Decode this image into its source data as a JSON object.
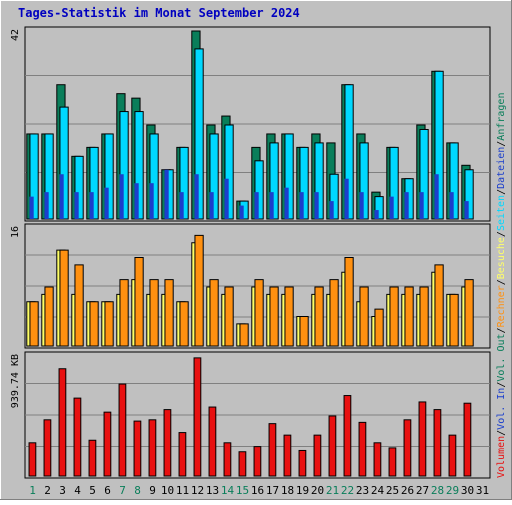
{
  "chart_data": {
    "type": "bar",
    "title": "Tages-Statistik im Monat September 2024",
    "categories": [
      "1",
      "2",
      "3",
      "4",
      "5",
      "6",
      "7",
      "8",
      "9",
      "10",
      "11",
      "12",
      "13",
      "14",
      "15",
      "16",
      "17",
      "18",
      "19",
      "20",
      "21",
      "22",
      "23",
      "24",
      "25",
      "26",
      "27",
      "28",
      "29",
      "30",
      "31"
    ],
    "weekend_days": [
      "1",
      "7",
      "8",
      "14",
      "15",
      "21",
      "22",
      "28",
      "29"
    ],
    "colors": {
      "background": "#c0c0c0",
      "title": "#0000c0",
      "anfragen": "#0a7e5a",
      "dateien": "#00d8ff",
      "seiten": "#1b3fcc",
      "besuche": "#ffff66",
      "rechner": "#ff9010",
      "volumen": "#e81010",
      "weekend_label": "#0a7e5a",
      "weekday_label": "#000000"
    },
    "panels": [
      {
        "id": "hits",
        "max_label": "42",
        "ylim": [
          0,
          42
        ],
        "series": [
          {
            "name": "Anfragen",
            "values": [
              19,
              19,
              30,
              14,
              16,
              19,
              28,
              27,
              21,
              11,
              16,
              42,
              21,
              23,
              4,
              16,
              19,
              19,
              16,
              19,
              17,
              30,
              19,
              6,
              16,
              9,
              21,
              33,
              17,
              12,
              null
            ]
          },
          {
            "name": "Dateien",
            "values": [
              19,
              19,
              25,
              14,
              16,
              19,
              24,
              24,
              19,
              11,
              16,
              38,
              19,
              21,
              4,
              13,
              17,
              19,
              16,
              17,
              10,
              30,
              17,
              5,
              16,
              9,
              20,
              33,
              17,
              11,
              null
            ]
          },
          {
            "name": "Seiten",
            "values": [
              5,
              6,
              10,
              6,
              6,
              7,
              10,
              8,
              8,
              11,
              6,
              10,
              6,
              9,
              3,
              6,
              6,
              7,
              6,
              6,
              4,
              9,
              6,
              2,
              5,
              6,
              6,
              10,
              6,
              4,
              null
            ]
          }
        ]
      },
      {
        "id": "visits",
        "max_label": "16",
        "ylim": [
          0,
          16
        ],
        "series": [
          {
            "name": "Besuche",
            "values": [
              6,
              7,
              13,
              7,
              6,
              6,
              7,
              9,
              7,
              7,
              6,
              14,
              8,
              7,
              3,
              8,
              7,
              7,
              4,
              7,
              7,
              10,
              6,
              4,
              7,
              7,
              7,
              10,
              7,
              8,
              null
            ]
          },
          {
            "name": "Rechner",
            "values": [
              6,
              8,
              13,
              11,
              6,
              6,
              9,
              12,
              9,
              9,
              6,
              15,
              9,
              8,
              3,
              9,
              8,
              8,
              4,
              8,
              9,
              12,
              8,
              5,
              8,
              8,
              8,
              11,
              7,
              9,
              null
            ]
          }
        ]
      },
      {
        "id": "volume",
        "max_label": "939.74 KB",
        "ylim": [
          0,
          939.74
        ],
        "series": [
          {
            "name": "Volumen",
            "values": [
              260,
              440,
              840,
              610,
              280,
              500,
              720,
              430,
              440,
              520,
              340,
              925,
              540,
              260,
              190,
              230,
              410,
              320,
              200,
              320,
              470,
              630,
              420,
              260,
              220,
              440,
              580,
              520,
              320,
              570,
              null
            ]
          }
        ]
      }
    ],
    "legend_right": [
      {
        "label": "Anfragen",
        "key": "anfragen"
      },
      {
        "label": "/",
        "key": "weekday_label"
      },
      {
        "label": "Dateien",
        "key": "seiten"
      },
      {
        "label": "/",
        "key": "weekday_label"
      },
      {
        "label": "Seiten",
        "key": "dateien"
      },
      {
        "label": "/",
        "key": "weekday_label"
      },
      {
        "label": "Besuche",
        "key": "besuche"
      },
      {
        "label": "/",
        "key": "weekday_label"
      },
      {
        "label": "Rechner",
        "key": "rechner"
      },
      {
        "label": "/",
        "key": "weekday_label"
      },
      {
        "label": "Vol. Out",
        "key": "anfragen"
      },
      {
        "label": "/",
        "key": "weekday_label"
      },
      {
        "label": "Vol. In",
        "key": "seiten"
      },
      {
        "label": "/",
        "key": "weekday_label"
      },
      {
        "label": "Volumen",
        "key": "volumen"
      }
    ]
  }
}
